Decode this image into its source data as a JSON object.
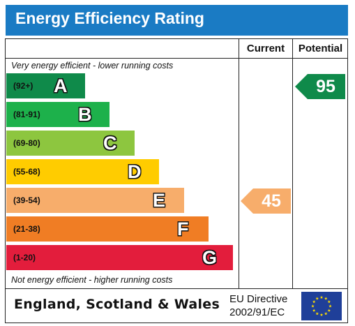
{
  "header": {
    "title": "Energy Efficiency Rating",
    "color": "#1a7bc4"
  },
  "columns": {
    "current": "Current",
    "potential": "Potential"
  },
  "notes": {
    "top": "Very energy efficient - lower running costs",
    "bottom": "Not energy efficient - higher running costs"
  },
  "footer": {
    "region": "England, Scotland & Wales",
    "directive_line1": "EU Directive",
    "directive_line2": "2002/91/EC"
  },
  "chart_data": {
    "type": "bar",
    "title": "Energy Efficiency Rating",
    "bands": [
      {
        "range": "(92+)",
        "letter": "A",
        "color": "#0f8a4a"
      },
      {
        "range": "(81-91)",
        "letter": "B",
        "color": "#1db14b"
      },
      {
        "range": "(69-80)",
        "letter": "C",
        "color": "#8dc63f"
      },
      {
        "range": "(55-68)",
        "letter": "D",
        "color": "#ffcc00"
      },
      {
        "range": "(39-54)",
        "letter": "E",
        "color": "#f7ad6b"
      },
      {
        "range": "(21-38)",
        "letter": "F",
        "color": "#f07d24"
      },
      {
        "range": "(1-20)",
        "letter": "G",
        "color": "#e31d3c"
      }
    ],
    "current": {
      "value": 45,
      "band": "E",
      "color": "#f7ad6b"
    },
    "potential": {
      "value": 95,
      "band": "A",
      "color": "#0f8a4a"
    }
  }
}
